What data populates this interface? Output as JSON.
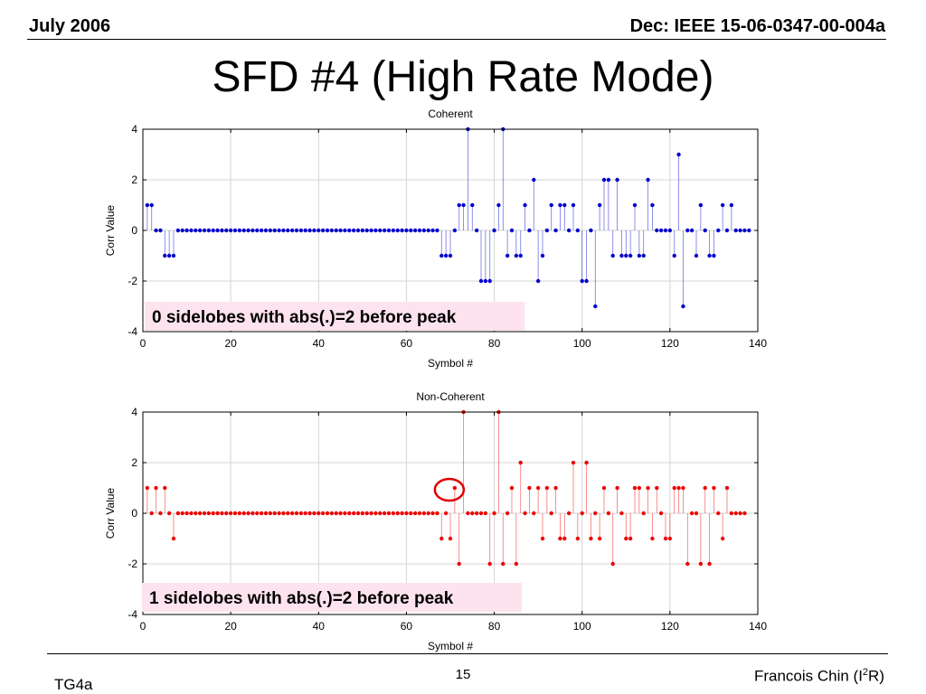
{
  "header": {
    "left": "July 2006",
    "right": "Dec: IEEE 15-06-0347-00-004a"
  },
  "slide": {
    "title": "SFD #4 (High Rate Mode)"
  },
  "footer": {
    "left": "TG4a",
    "page": "15",
    "author": "Francois Chin (I",
    "author_sup": "2",
    "author_end": "R)"
  },
  "chart_data": [
    {
      "type": "stem",
      "title": "Coherent",
      "xlabel": "Symbol #",
      "ylabel": "Corr Value",
      "xlim": [
        0,
        140
      ],
      "ylim": [
        -4,
        4
      ],
      "xticks": [
        0,
        20,
        40,
        60,
        80,
        100,
        120,
        140
      ],
      "yticks": [
        -4,
        -2,
        0,
        2,
        4
      ],
      "grid": true,
      "color": "#0000cc",
      "annotation": "0 sidelobes with abs(.)=2 before peak",
      "values": [
        1,
        1,
        0,
        0,
        -1,
        -1,
        -1,
        0,
        0,
        0,
        0,
        0,
        0,
        0,
        0,
        0,
        0,
        0,
        0,
        0,
        0,
        0,
        0,
        0,
        0,
        0,
        0,
        0,
        0,
        0,
        0,
        0,
        0,
        0,
        0,
        0,
        0,
        0,
        0,
        0,
        0,
        0,
        0,
        0,
        0,
        0,
        0,
        0,
        0,
        0,
        0,
        0,
        0,
        0,
        0,
        0,
        0,
        0,
        0,
        0,
        0,
        0,
        0,
        0,
        0,
        0,
        0,
        -1,
        -1,
        -1,
        0,
        1,
        1,
        4,
        1,
        0,
        -2,
        -2,
        -2,
        0,
        1,
        4,
        -1,
        0,
        -1,
        -1,
        1,
        0,
        2,
        -2,
        -1,
        0,
        1,
        0,
        1,
        1,
        0,
        1,
        0,
        -2,
        -2,
        0,
        -3,
        1,
        2,
        2,
        -1,
        2,
        -1,
        -1,
        -1,
        1,
        -1,
        -1,
        2,
        1,
        0,
        0,
        0,
        0,
        -1,
        3,
        -3,
        0,
        0,
        -1,
        1,
        0,
        -1,
        -1,
        0,
        1,
        0,
        1,
        0,
        0,
        0,
        0
      ]
    },
    {
      "type": "stem",
      "title": "Non-Coherent",
      "xlabel": "Symbol #",
      "ylabel": "Corr Value",
      "xlim": [
        0,
        140
      ],
      "ylim": [
        -4,
        4
      ],
      "xticks": [
        0,
        20,
        40,
        60,
        80,
        100,
        120,
        140
      ],
      "yticks": [
        -4,
        -2,
        0,
        2,
        4
      ],
      "grid": true,
      "color": "#ee0000",
      "annotation": "1 sidelobes with abs(.)=2 before peak",
      "highlight_index": 71,
      "values": [
        1,
        0,
        1,
        0,
        1,
        0,
        -1,
        0,
        0,
        0,
        0,
        0,
        0,
        0,
        0,
        0,
        0,
        0,
        0,
        0,
        0,
        0,
        0,
        0,
        0,
        0,
        0,
        0,
        0,
        0,
        0,
        0,
        0,
        0,
        0,
        0,
        0,
        0,
        0,
        0,
        0,
        0,
        0,
        0,
        0,
        0,
        0,
        0,
        0,
        0,
        0,
        0,
        0,
        0,
        0,
        0,
        0,
        0,
        0,
        0,
        0,
        0,
        0,
        0,
        0,
        0,
        0,
        -1,
        0,
        -1,
        1,
        -2,
        4,
        0,
        0,
        0,
        0,
        0,
        -2,
        0,
        4,
        -2,
        0,
        1,
        -2,
        2,
        0,
        1,
        0,
        1,
        -1,
        1,
        0,
        1,
        -1,
        -1,
        0,
        2,
        -1,
        0,
        2,
        -1,
        0,
        -1,
        1,
        0,
        -2,
        1,
        0,
        -1,
        -1,
        1,
        1,
        0,
        1,
        -1,
        1,
        0,
        -1,
        -1,
        1,
        1,
        1,
        -2,
        0,
        0,
        -2,
        1,
        -2,
        1,
        0,
        -1,
        1,
        0,
        0,
        0,
        0
      ]
    }
  ]
}
